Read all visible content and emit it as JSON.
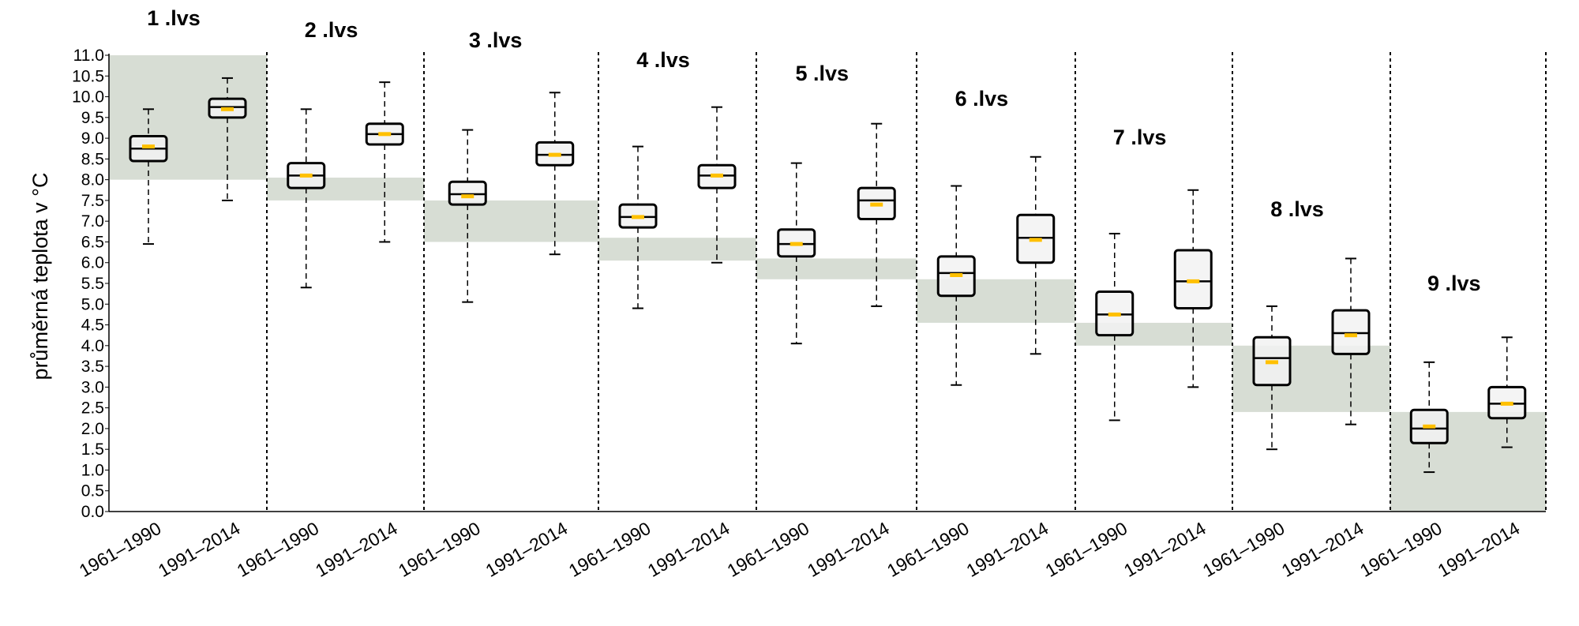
{
  "chart_data": {
    "type": "boxplot",
    "ylabel": "průměrná teplota v °C",
    "ylim": [
      0,
      11
    ],
    "yticks": [
      "0.0",
      "0.5",
      "1.0",
      "1.5",
      "2.0",
      "2.5",
      "3.0",
      "3.5",
      "4.0",
      "4.5",
      "5.0",
      "5.5",
      "6.0",
      "6.5",
      "7.0",
      "7.5",
      "8.0",
      "8.5",
      "9.0",
      "9.5",
      "10.0",
      "10.5",
      "11.0"
    ],
    "colors": {
      "band": "#d7ddd4",
      "box_fill": "#f2f2f2",
      "median": "#000000",
      "mean": "#ffc000",
      "axis": "#000000"
    },
    "groups": [
      {
        "label": "1 .lvs",
        "band": [
          8.0,
          11.0
        ],
        "boxes": [
          {
            "period": "1961–1990",
            "min": 6.45,
            "q1": 8.45,
            "median": 8.75,
            "q3": 9.05,
            "max": 9.7,
            "mean": 8.8
          },
          {
            "period": "1991–2014",
            "min": 7.5,
            "q1": 9.5,
            "median": 9.75,
            "q3": 9.95,
            "max": 10.45,
            "mean": 9.7
          }
        ]
      },
      {
        "label": "2 .lvs",
        "band": [
          7.5,
          8.05
        ],
        "boxes": [
          {
            "period": "1961–1990",
            "min": 5.4,
            "q1": 7.8,
            "median": 8.1,
            "q3": 8.4,
            "max": 9.7,
            "mean": 8.1
          },
          {
            "period": "1991–2014",
            "min": 6.5,
            "q1": 8.85,
            "median": 9.1,
            "q3": 9.35,
            "max": 10.35,
            "mean": 9.1
          }
        ]
      },
      {
        "label": "3 .lvs",
        "band": [
          6.5,
          7.5
        ],
        "boxes": [
          {
            "period": "1961–1990",
            "min": 5.05,
            "q1": 7.4,
            "median": 7.65,
            "q3": 7.95,
            "max": 9.2,
            "mean": 7.6
          },
          {
            "period": "1991–2014",
            "min": 6.2,
            "q1": 8.35,
            "median": 8.6,
            "q3": 8.9,
            "max": 10.1,
            "mean": 8.6
          }
        ]
      },
      {
        "label": "4 .lvs",
        "band": [
          6.05,
          6.6
        ],
        "boxes": [
          {
            "period": "1961–1990",
            "min": 4.9,
            "q1": 6.85,
            "median": 7.1,
            "q3": 7.4,
            "max": 8.8,
            "mean": 7.1
          },
          {
            "period": "1991–2014",
            "min": 6.0,
            "q1": 7.8,
            "median": 8.1,
            "q3": 8.35,
            "max": 9.75,
            "mean": 8.1
          }
        ]
      },
      {
        "label": "5 .lvs",
        "band": [
          5.6,
          6.1
        ],
        "boxes": [
          {
            "period": "1961–1990",
            "min": 4.05,
            "q1": 6.15,
            "median": 6.45,
            "q3": 6.8,
            "max": 8.4,
            "mean": 6.45
          },
          {
            "period": "1991–2014",
            "min": 4.95,
            "q1": 7.05,
            "median": 7.5,
            "q3": 7.8,
            "max": 9.35,
            "mean": 7.4
          }
        ]
      },
      {
        "label": "6 .lvs",
        "band": [
          4.55,
          5.6
        ],
        "boxes": [
          {
            "period": "1961–1990",
            "min": 3.05,
            "q1": 5.2,
            "median": 5.75,
            "q3": 6.15,
            "max": 7.85,
            "mean": 5.7
          },
          {
            "period": "1991–2014",
            "min": 3.8,
            "q1": 6.0,
            "median": 6.6,
            "q3": 7.15,
            "max": 8.55,
            "mean": 6.55
          }
        ]
      },
      {
        "label": "7 .lvs",
        "band": [
          4.0,
          4.55
        ],
        "boxes": [
          {
            "period": "1961–1990",
            "min": 2.2,
            "q1": 4.25,
            "median": 4.75,
            "q3": 5.3,
            "max": 6.7,
            "mean": 4.75
          },
          {
            "period": "1991–2014",
            "min": 3.0,
            "q1": 4.9,
            "median": 5.55,
            "q3": 6.3,
            "max": 7.75,
            "mean": 5.55
          }
        ]
      },
      {
        "label": "8 .lvs",
        "band": [
          2.4,
          4.0
        ],
        "boxes": [
          {
            "period": "1961–1990",
            "min": 1.5,
            "q1": 3.05,
            "median": 3.7,
            "q3": 4.2,
            "max": 4.95,
            "mean": 3.6
          },
          {
            "period": "1991–2014",
            "min": 2.1,
            "q1": 3.8,
            "median": 4.3,
            "q3": 4.85,
            "max": 6.1,
            "mean": 4.25
          }
        ]
      },
      {
        "label": "9 .lvs",
        "band": [
          0.0,
          2.4
        ],
        "boxes": [
          {
            "period": "1961–1990",
            "min": 0.95,
            "q1": 1.65,
            "median": 2.0,
            "q3": 2.45,
            "max": 3.6,
            "mean": 2.05
          },
          {
            "period": "1991–2014",
            "min": 1.55,
            "q1": 2.25,
            "median": 2.6,
            "q3": 3.0,
            "max": 4.2,
            "mean": 2.6
          }
        ]
      }
    ]
  }
}
